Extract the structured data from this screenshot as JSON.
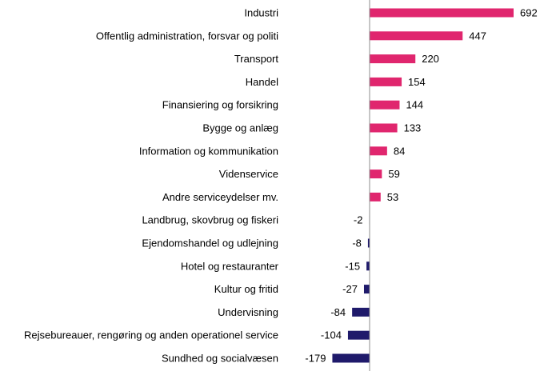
{
  "chart_data": {
    "type": "bar",
    "orientation": "horizontal",
    "categories": [
      "Industri",
      "Offentlig administration, forsvar og politi",
      "Transport",
      "Handel",
      "Finansiering og forsikring",
      "Bygge og anlæg",
      "Information og kommunikation",
      "Videnservice",
      "Andre serviceydelser  mv.",
      "Landbrug, skovbrug og fiskeri",
      "Ejendomshandel og udlejning",
      "Hotel og restauranter",
      "Kultur og fritid",
      "Undervisning",
      "Rejsebureauer, rengøring og anden operationel service",
      "Sundhed og socialvæsen"
    ],
    "values": [
      692,
      447,
      220,
      154,
      144,
      133,
      84,
      59,
      53,
      -2,
      -8,
      -15,
      -27,
      -84,
      -104,
      -179
    ],
    "value_labels": [
      "692",
      "447",
      "220",
      "154",
      "144",
      "133",
      "84",
      "59",
      "53",
      "-2",
      "-8",
      "-15",
      "-27",
      "-84",
      "-104",
      "-179"
    ],
    "colors": {
      "positive": "#e0266e",
      "negative": "#1f1a6b",
      "axis": "#8c8c8c"
    },
    "title": "",
    "xlabel": "",
    "ylabel": "",
    "xlim": [
      -190,
      700
    ],
    "grid": false,
    "legend": "none"
  }
}
